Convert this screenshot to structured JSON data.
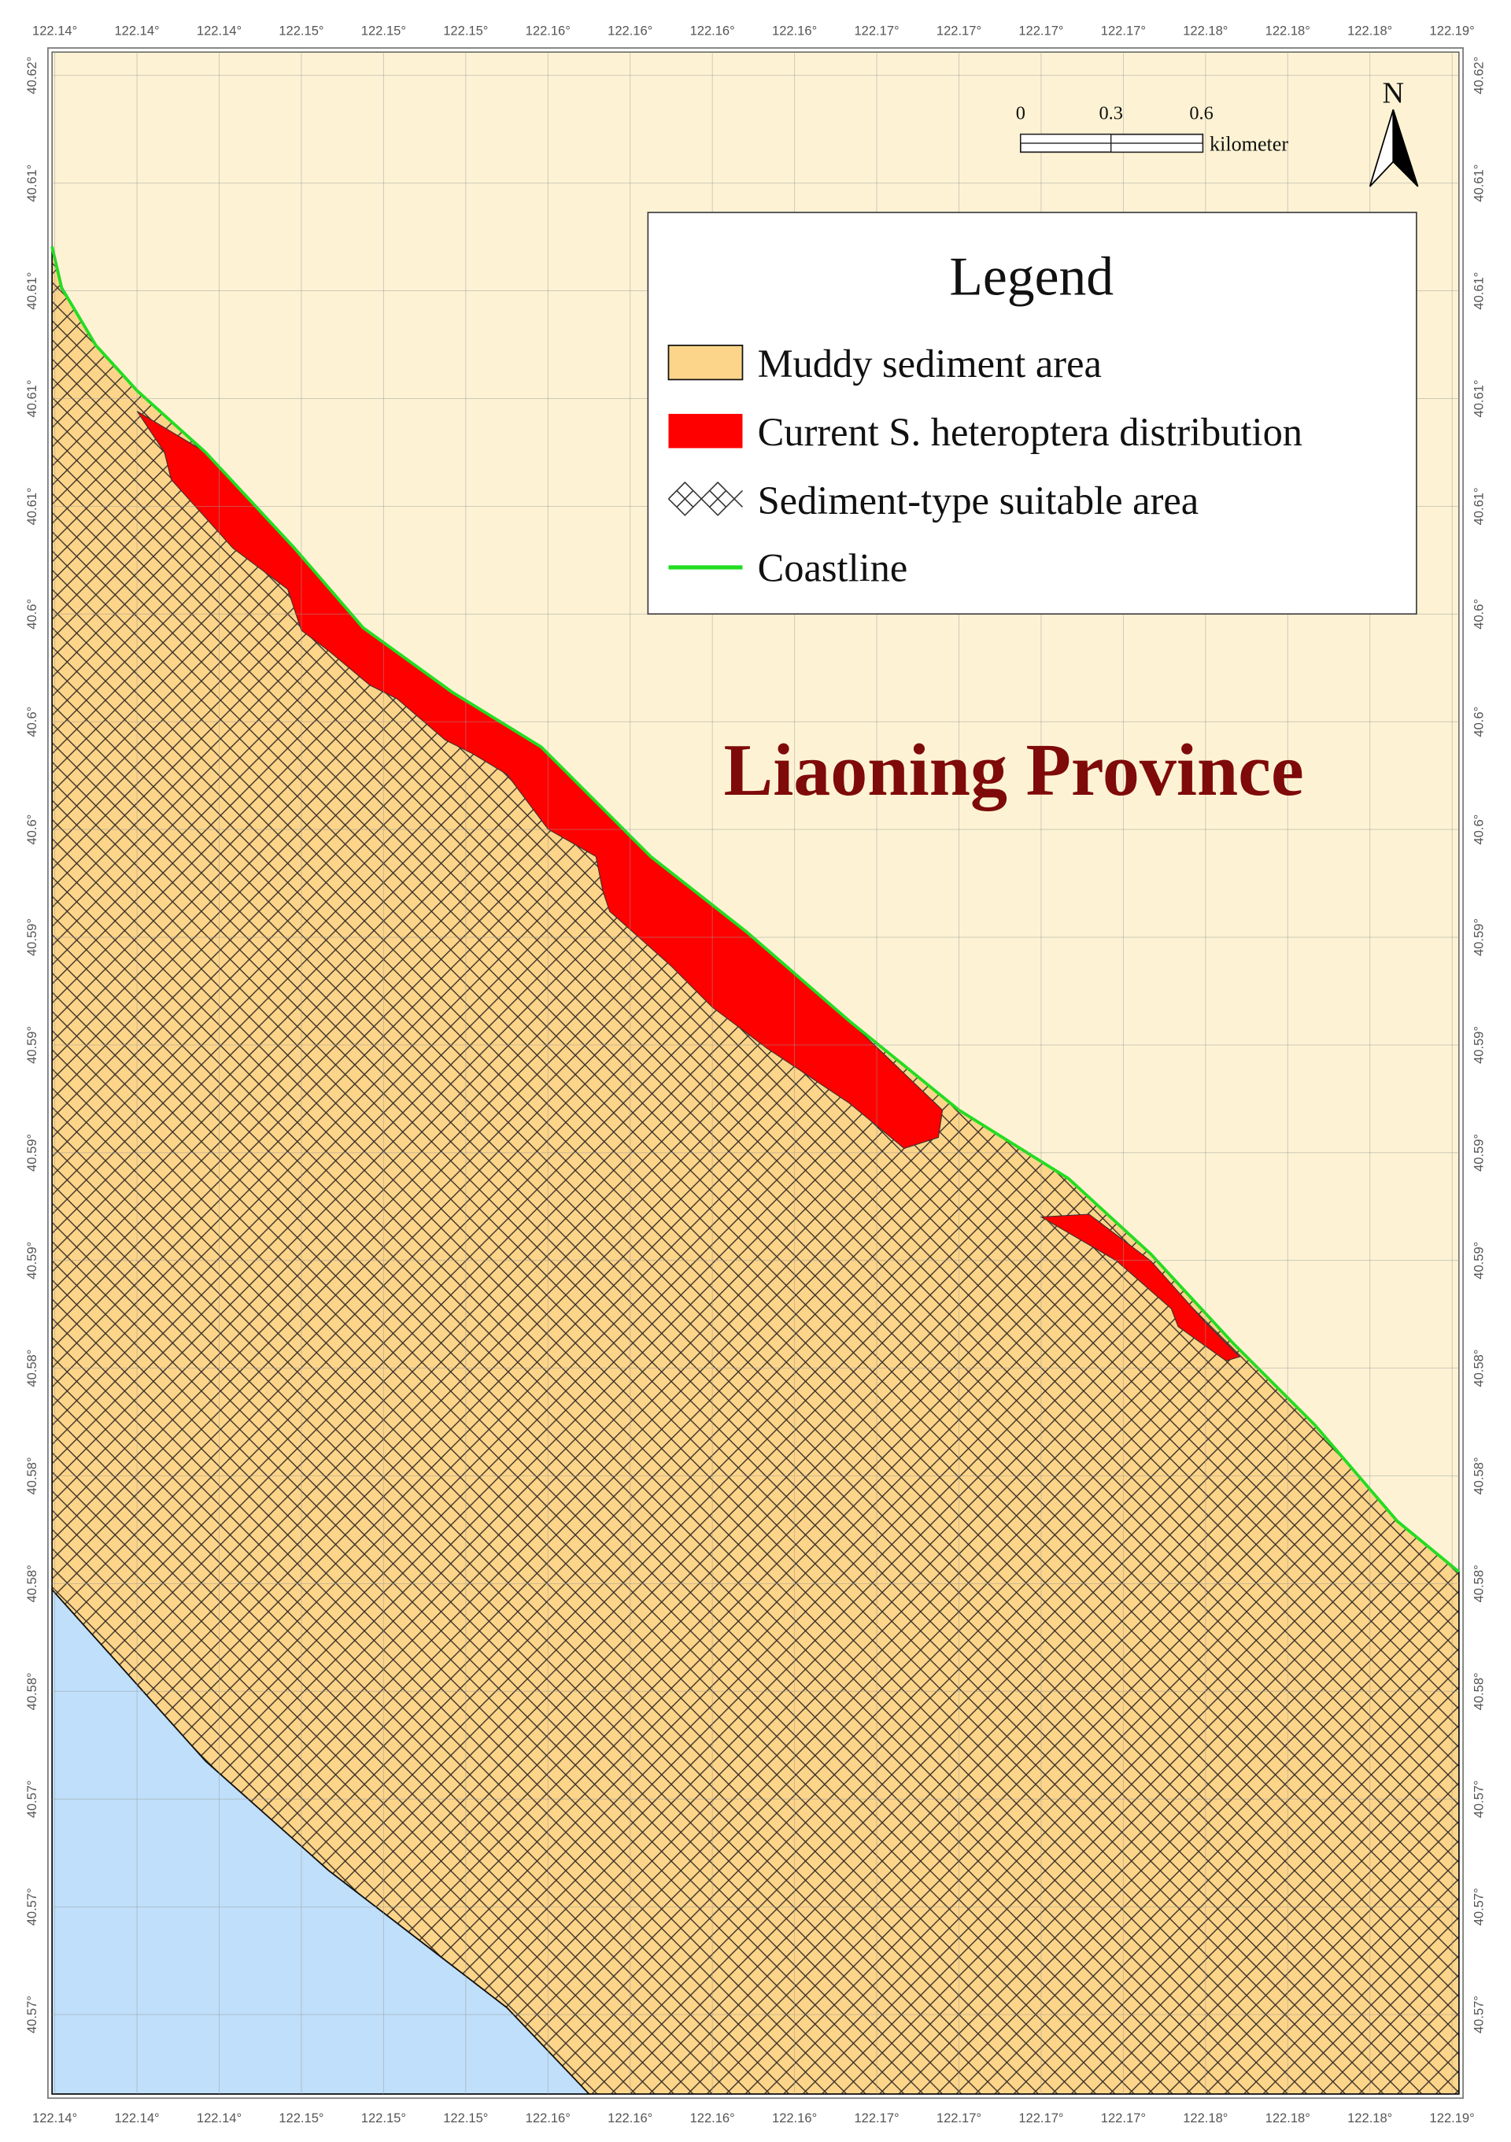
{
  "map": {
    "longitude_labels": [
      "122.14°",
      "122.14°",
      "122.14°",
      "122.15°",
      "122.15°",
      "122.15°",
      "122.16°",
      "122.16°",
      "122.16°",
      "122.16°",
      "122.17°",
      "122.17°",
      "122.17°",
      "122.17°",
      "122.18°",
      "122.18°",
      "122.18°",
      "122.19°"
    ],
    "latitude_labels": [
      "40.62°",
      "40.61°",
      "40.61°",
      "40.61°",
      "40.61°",
      "40.6°",
      "40.6°",
      "40.6°",
      "40.59°",
      "40.59°",
      "40.59°",
      "40.59°",
      "40.58°",
      "40.58°",
      "40.58°",
      "40.58°",
      "40.57°",
      "40.57°",
      "40.57°"
    ],
    "legend": {
      "title": "Legend",
      "items": [
        "Muddy sediment area",
        "Current S. heteroptera distribution",
        "Sediment-type suitable area",
        "Coastline"
      ]
    },
    "scale_bar": {
      "labels": [
        0,
        0.3,
        0.6
      ],
      "unit": "kilometer"
    },
    "north_label": "N",
    "region_label": "Liaoning Province"
  }
}
